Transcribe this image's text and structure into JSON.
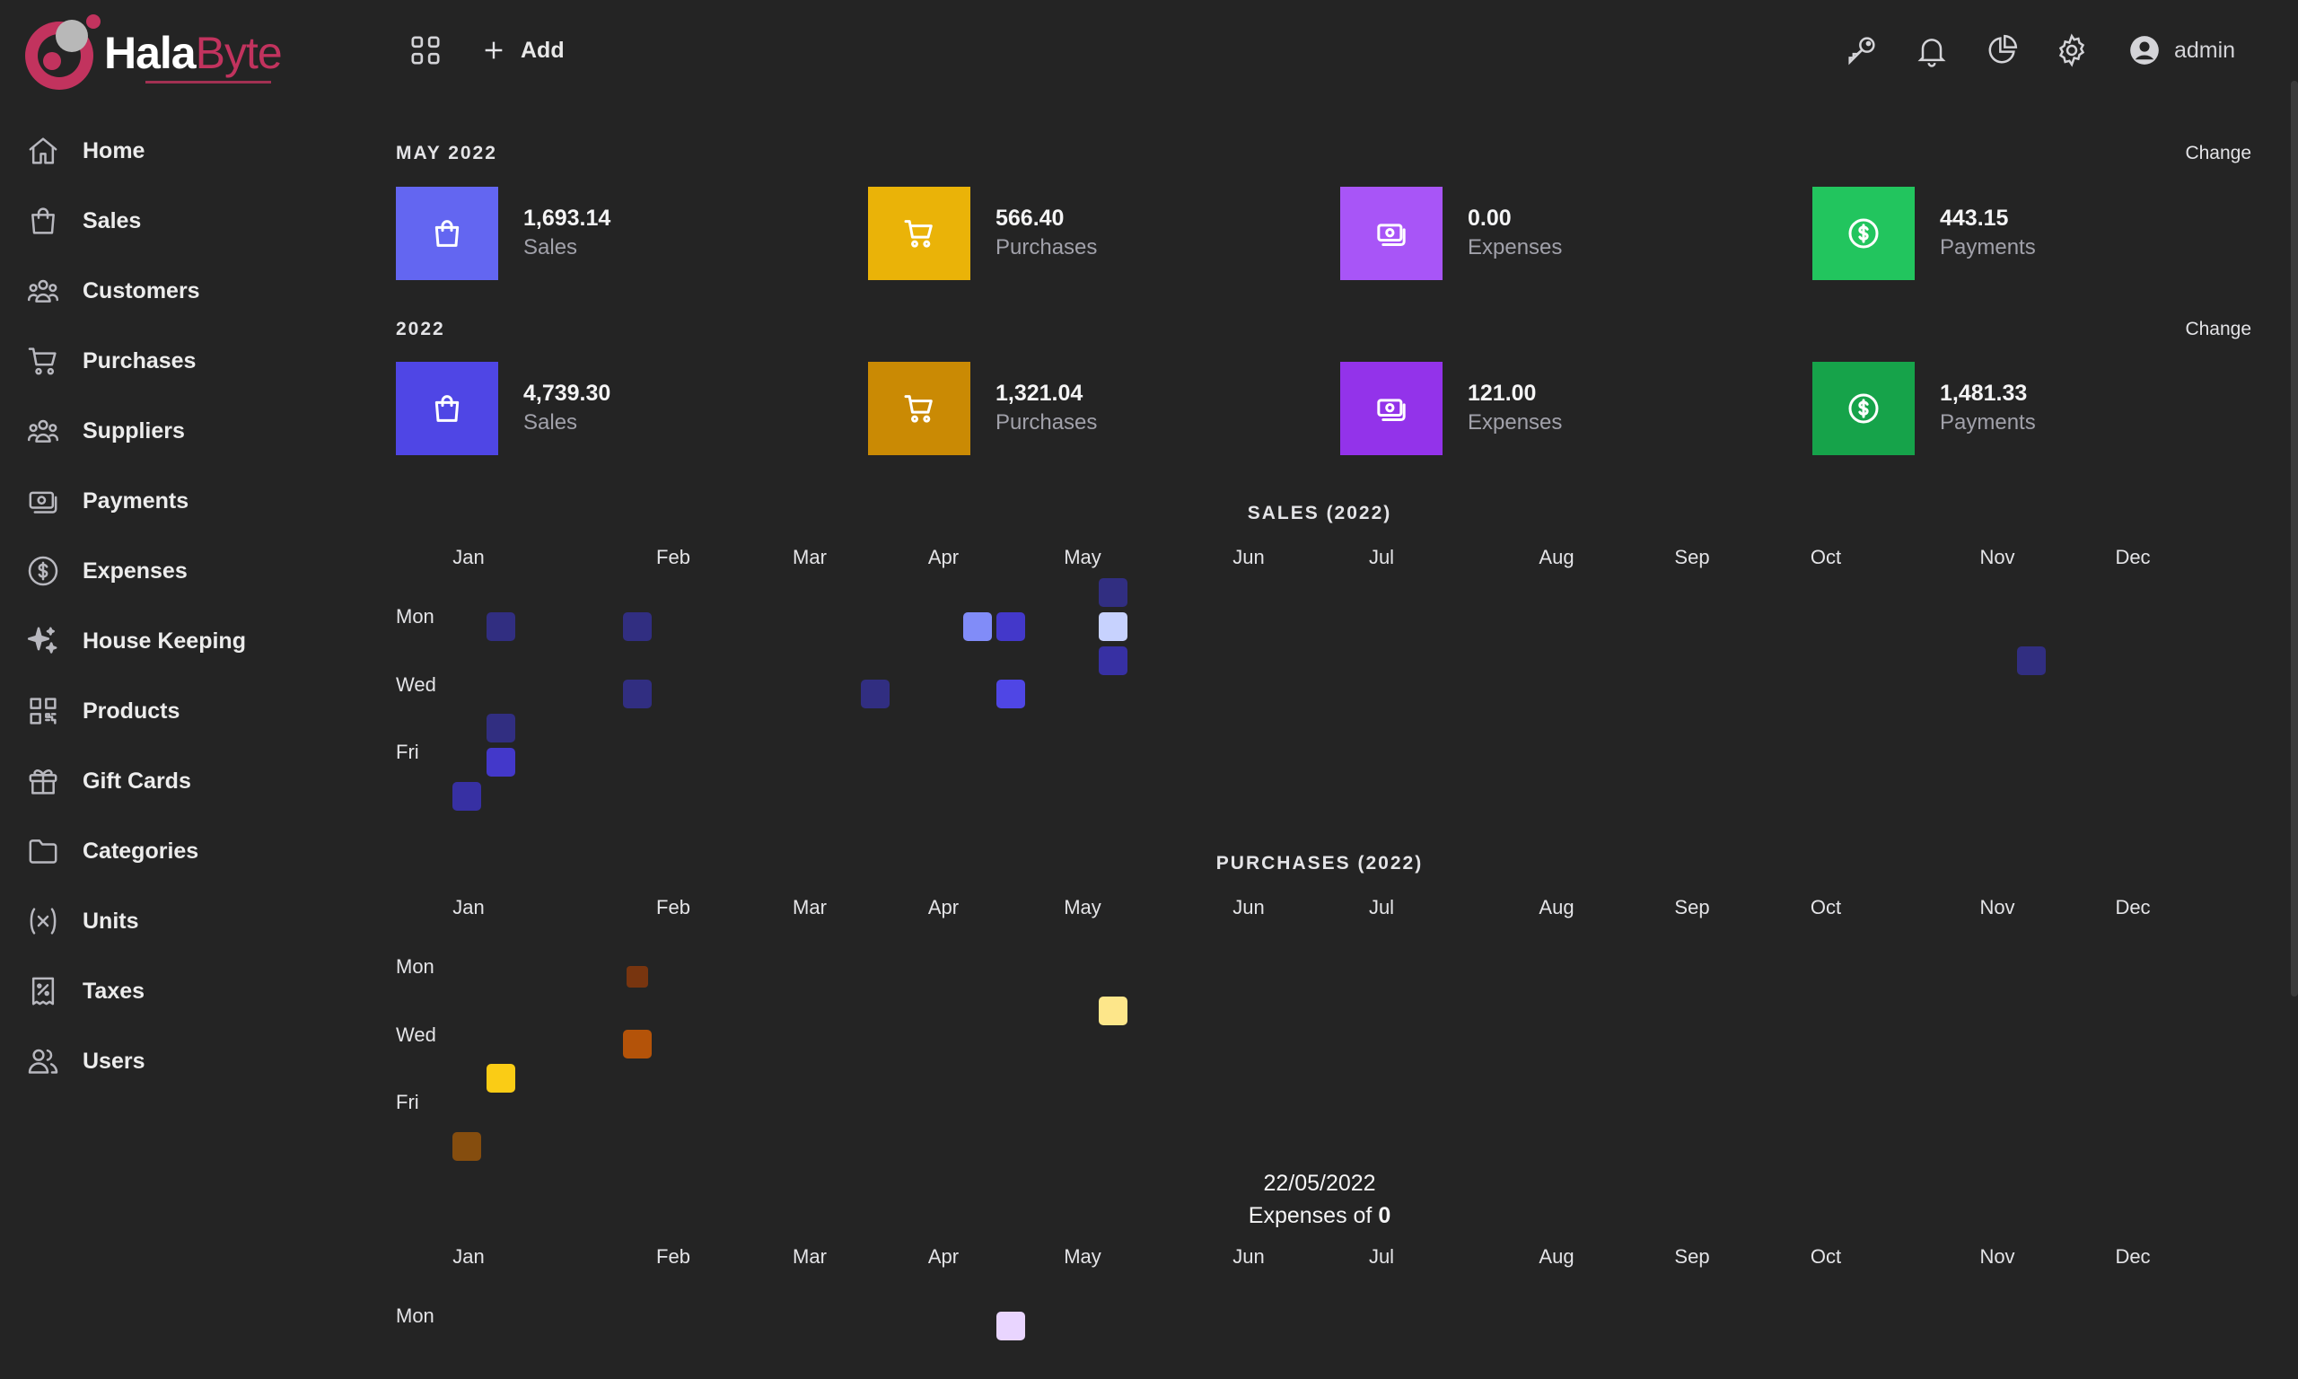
{
  "brand": {
    "name_white": "Hala",
    "name_red": "Byte"
  },
  "sidebar": {
    "items": [
      {
        "label": "Home",
        "icon": "home-icon"
      },
      {
        "label": "Sales",
        "icon": "shopping-bag-icon"
      },
      {
        "label": "Customers",
        "icon": "users-group-icon"
      },
      {
        "label": "Purchases",
        "icon": "shopping-cart-icon"
      },
      {
        "label": "Suppliers",
        "icon": "users-group-icon"
      },
      {
        "label": "Payments",
        "icon": "cash-icon"
      },
      {
        "label": "Expenses",
        "icon": "dollar-circle-icon"
      },
      {
        "label": "House Keeping",
        "icon": "sparkles-icon"
      },
      {
        "label": "Products",
        "icon": "qrcode-icon"
      },
      {
        "label": "Gift Cards",
        "icon": "gift-icon"
      },
      {
        "label": "Categories",
        "icon": "folder-icon"
      },
      {
        "label": "Units",
        "icon": "variable-icon"
      },
      {
        "label": "Taxes",
        "icon": "receipt-tax-icon"
      },
      {
        "label": "Users",
        "icon": "users-icon"
      }
    ]
  },
  "topbar": {
    "add_label": "Add",
    "user_label": "admin"
  },
  "stats": {
    "month": {
      "label": "MAY 2022",
      "change": "Change",
      "cards": [
        {
          "value": "1,693.14",
          "label": "Sales",
          "color": "#6366f1",
          "icon": "shopping-bag-icon"
        },
        {
          "value": "566.40",
          "label": "Purchases",
          "color": "#eab308",
          "icon": "shopping-cart-icon"
        },
        {
          "value": "0.00",
          "label": "Expenses",
          "color": "#a855f7",
          "icon": "cash-icon"
        },
        {
          "value": "443.15",
          "label": "Payments",
          "color": "#22c55e",
          "icon": "dollar-circle-icon"
        }
      ]
    },
    "year": {
      "label": "2022",
      "change": "Change",
      "cards": [
        {
          "value": "4,739.30",
          "label": "Sales",
          "color": "#4f46e5",
          "icon": "shopping-bag-icon"
        },
        {
          "value": "1,321.04",
          "label": "Purchases",
          "color": "#ca8a04",
          "icon": "shopping-cart-icon"
        },
        {
          "value": "121.00",
          "label": "Expenses",
          "color": "#9333ea",
          "icon": "cash-icon"
        },
        {
          "value": "1,481.33",
          "label": "Payments",
          "color": "#16a34a",
          "icon": "dollar-circle-icon"
        }
      ]
    }
  },
  "chart_data": [
    {
      "type": "heatmap",
      "title": "SALES (2022)",
      "months": [
        "Jan",
        "Feb",
        "Mar",
        "Apr",
        "May",
        "Jun",
        "Jul",
        "Aug",
        "Sep",
        "Oct",
        "Nov",
        "Dec"
      ],
      "day_labels": [
        "Mon",
        "Wed",
        "Fri"
      ],
      "cells": [
        {
          "week": 1,
          "day": 1,
          "color": "#312e81"
        },
        {
          "week": 1,
          "day": 4,
          "color": "#312e81"
        },
        {
          "week": 1,
          "day": 5,
          "color": "#4338ca"
        },
        {
          "week": 0,
          "day": 6,
          "color": "#3730a3"
        },
        {
          "week": 5,
          "day": 1,
          "color": "#312e81"
        },
        {
          "week": 5,
          "day": 3,
          "color": "#312e81"
        },
        {
          "week": 12,
          "day": 3,
          "color": "#312e81"
        },
        {
          "week": 15,
          "day": 1,
          "color": "#818cf8"
        },
        {
          "week": 16,
          "day": 1,
          "color": "#4338ca"
        },
        {
          "week": 16,
          "day": 3,
          "color": "#4f46e5"
        },
        {
          "week": 19,
          "day": 0,
          "color": "#312e81"
        },
        {
          "week": 19,
          "day": 1,
          "color": "#c7d2fe"
        },
        {
          "week": 19,
          "day": 2,
          "color": "#3730a3"
        },
        {
          "week": 46,
          "day": 2,
          "color": "#312e81"
        }
      ]
    },
    {
      "type": "heatmap",
      "title": "PURCHASES (2022)",
      "months": [
        "Jan",
        "Feb",
        "Mar",
        "Apr",
        "May",
        "Jun",
        "Jul",
        "Aug",
        "Sep",
        "Oct",
        "Nov",
        "Dec"
      ],
      "day_labels": [
        "Mon",
        "Wed",
        "Fri"
      ],
      "cells": [
        {
          "week": 5,
          "day": 1,
          "color": "#78350f",
          "small": true
        },
        {
          "week": 5,
          "day": 3,
          "color": "#b45309"
        },
        {
          "week": 1,
          "day": 4,
          "color": "#facc15"
        },
        {
          "week": 0,
          "day": 6,
          "color": "#854d0e"
        },
        {
          "week": 19,
          "day": 2,
          "color": "#fde68a"
        }
      ]
    },
    {
      "type": "heatmap",
      "title": "",
      "months": [
        "Jan",
        "Feb",
        "Mar",
        "Apr",
        "May",
        "Jun",
        "Jul",
        "Aug",
        "Sep",
        "Oct",
        "Nov",
        "Dec"
      ],
      "day_labels": [
        "Mon"
      ],
      "cells": [
        {
          "week": 16,
          "day": 1,
          "color": "#e9d5ff"
        }
      ]
    }
  ],
  "tooltip": {
    "date": "22/05/2022",
    "prefix": "Expenses of ",
    "value": "0"
  }
}
